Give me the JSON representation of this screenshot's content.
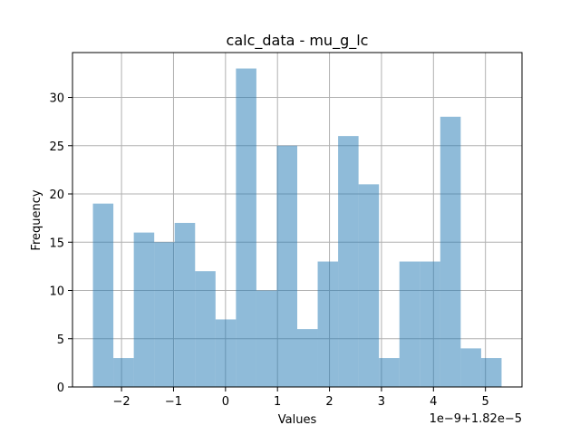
{
  "chart_data": {
    "type": "bar",
    "title": "calc_data - mu_g_lc",
    "xlabel": "Values",
    "ylabel": "Frequency",
    "x_offset_label": "1e−9+1.82e−5",
    "bin_edges": [
      -2.55,
      -2.157,
      -1.764,
      -1.371,
      -0.978,
      -0.585,
      -0.192,
      0.201,
      0.594,
      0.987,
      1.38,
      1.773,
      2.166,
      2.559,
      2.952,
      3.345,
      3.738,
      4.131,
      4.524,
      4.917,
      5.31
    ],
    "values": [
      19,
      3,
      16,
      15,
      17,
      12,
      7,
      33,
      10,
      25,
      6,
      13,
      26,
      21,
      3,
      13,
      13,
      28,
      4,
      3
    ],
    "xlim": [
      -2.943,
      5.703
    ],
    "ylim": [
      0,
      34.65
    ],
    "xticks": [
      -2,
      -1,
      0,
      1,
      2,
      3,
      4,
      5
    ],
    "xtick_labels": [
      "−2",
      "−1",
      "0",
      "1",
      "2",
      "3",
      "4",
      "5"
    ],
    "yticks": [
      0,
      5,
      10,
      15,
      20,
      25,
      30
    ],
    "ytick_labels": [
      "0",
      "5",
      "10",
      "15",
      "20",
      "25",
      "30"
    ],
    "grid": true,
    "colors": {
      "bar": "#1f77b4",
      "grid": "#b0b0b0"
    }
  }
}
